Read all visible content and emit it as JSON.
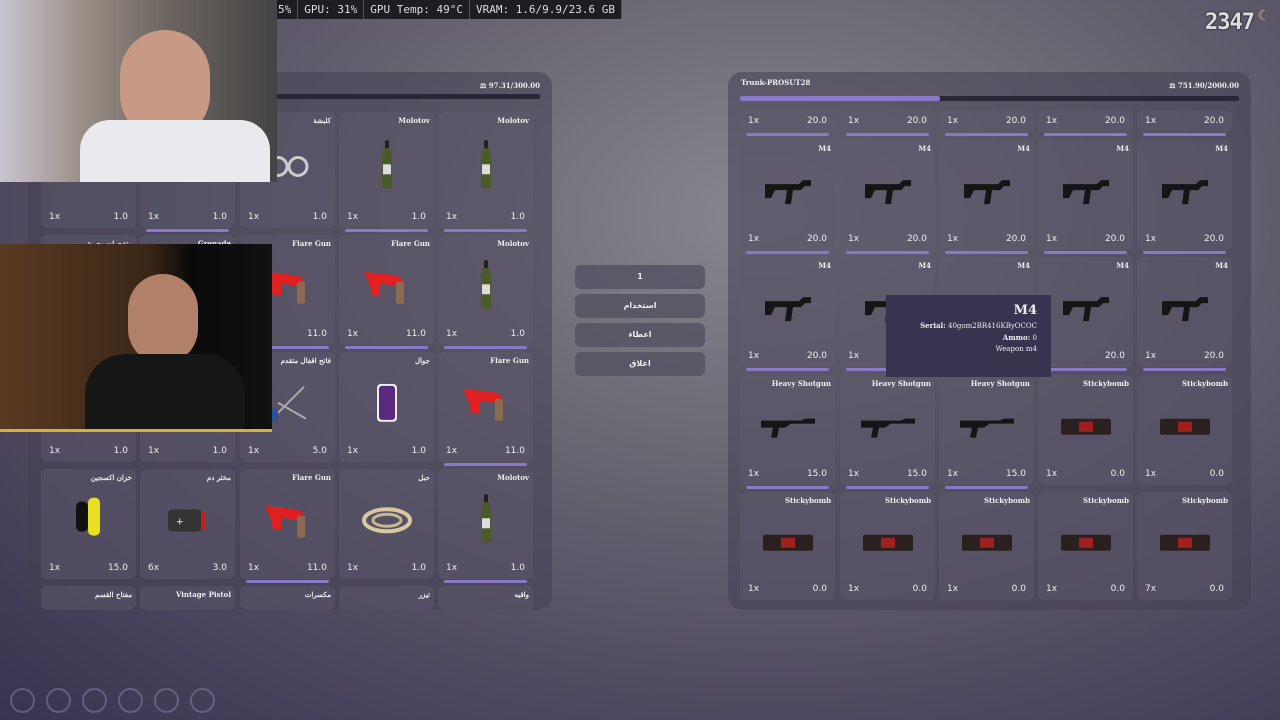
{
  "overlay": {
    "stats": [
      "5%",
      "GPU: 31%",
      "GPU Temp: 49°C",
      "VRAM: 1.6/9.9/23.6 GB"
    ],
    "clock": "2347"
  },
  "player_inventory": {
    "weight": "97.31/300.00",
    "slots": [
      {
        "label": "",
        "qty": "1x",
        "weight": "1.0",
        "icon": "none",
        "durability": 0
      },
      {
        "label": "",
        "qty": "1x",
        "weight": "1.0",
        "icon": "none",
        "durability": 1
      },
      {
        "label": "كلبشة",
        "qty": "1x",
        "weight": "1.0",
        "icon": "handcuffs",
        "durability": 0
      },
      {
        "label": "Molotov",
        "qty": "1x",
        "weight": "1.0",
        "icon": "bottle",
        "durability": 1
      },
      {
        "label": "Molotov",
        "qty": "1x",
        "weight": "1.0",
        "icon": "bottle",
        "durability": 1
      },
      {
        "label": "متفجرات بحرية",
        "qty": "",
        "weight": "",
        "icon": "none",
        "durability": 0
      },
      {
        "label": "Grenade",
        "qty": "",
        "weight": "",
        "icon": "none",
        "durability": 0
      },
      {
        "label": "Flare Gun",
        "qty": "",
        "weight": "11.0",
        "icon": "flaregun",
        "durability": 1
      },
      {
        "label": "Flare Gun",
        "qty": "1x",
        "weight": "11.0",
        "icon": "flaregun",
        "durability": 1
      },
      {
        "label": "Molotov",
        "qty": "1x",
        "weight": "1.0",
        "icon": "bottle",
        "durability": 1
      },
      {
        "label": "",
        "qty": "1x",
        "weight": "1.0",
        "icon": "none",
        "durability": 0
      },
      {
        "label": "",
        "qty": "1x",
        "weight": "1.0",
        "icon": "none",
        "durability": 0
      },
      {
        "label": "فاتح اقفال متقدم",
        "qty": "1x",
        "weight": "5.0",
        "icon": "lockpick",
        "durability": 0
      },
      {
        "label": "جوال",
        "qty": "1x",
        "weight": "1.0",
        "icon": "phone",
        "durability": 0
      },
      {
        "label": "Flare Gun",
        "qty": "1x",
        "weight": "11.0",
        "icon": "flaregun",
        "durability": 1
      },
      {
        "label": "خزان اكسجين",
        "qty": "1x",
        "weight": "15.0",
        "icon": "oxygen",
        "durability": 0
      },
      {
        "label": "مخثر دم",
        "qty": "6x",
        "weight": "3.0",
        "icon": "medkit",
        "durability": 0
      },
      {
        "label": "Flare Gun",
        "qty": "1x",
        "weight": "11.0",
        "icon": "flaregun",
        "durability": 1
      },
      {
        "label": "حبل",
        "qty": "1x",
        "weight": "1.0",
        "icon": "rope",
        "durability": 0
      },
      {
        "label": "Molotov",
        "qty": "1x",
        "weight": "1.0",
        "icon": "bottle",
        "durability": 1
      },
      {
        "label": "مفتاح القسم",
        "qty": "",
        "weight": "",
        "icon": "none",
        "durability": 0
      },
      {
        "label": "Vintage Pistol",
        "qty": "",
        "weight": "",
        "icon": "none",
        "durability": 0
      },
      {
        "label": "مكسرات",
        "qty": "",
        "weight": "",
        "icon": "none",
        "durability": 0
      },
      {
        "label": "تيزر",
        "qty": "",
        "weight": "",
        "icon": "none",
        "durability": 0
      },
      {
        "label": "واقيه",
        "qty": "",
        "weight": "",
        "icon": "none",
        "durability": 0
      }
    ]
  },
  "actions": {
    "amount": "1",
    "use": "استخدام",
    "give": "اعطاء",
    "close": "اغلاق"
  },
  "trunk": {
    "title": "Trunk-PROSUT28",
    "weight": "751.90/2000.00",
    "fill": 0.4,
    "slots": [
      {
        "label": "",
        "qty": "1x",
        "weight": "20.0",
        "icon": "none",
        "durability": 1
      },
      {
        "label": "",
        "qty": "1x",
        "weight": "20.0",
        "icon": "none",
        "durability": 1
      },
      {
        "label": "",
        "qty": "1x",
        "weight": "20.0",
        "icon": "none",
        "durability": 1
      },
      {
        "label": "",
        "qty": "1x",
        "weight": "20.0",
        "icon": "none",
        "durability": 1
      },
      {
        "label": "",
        "qty": "1x",
        "weight": "20.0",
        "icon": "none",
        "durability": 1
      },
      {
        "label": "M4",
        "qty": "1x",
        "weight": "20.0",
        "icon": "rifle",
        "durability": 1
      },
      {
        "label": "M4",
        "qty": "1x",
        "weight": "20.0",
        "icon": "rifle",
        "durability": 1
      },
      {
        "label": "M4",
        "qty": "1x",
        "weight": "20.0",
        "icon": "rifle",
        "durability": 1
      },
      {
        "label": "M4",
        "qty": "1x",
        "weight": "20.0",
        "icon": "rifle",
        "durability": 1
      },
      {
        "label": "M4",
        "qty": "1x",
        "weight": "20.0",
        "icon": "rifle",
        "durability": 1
      },
      {
        "label": "M4",
        "qty": "1x",
        "weight": "20.0",
        "icon": "rifle",
        "durability": 1
      },
      {
        "label": "M4",
        "qty": "1x",
        "weight": "",
        "icon": "rifle",
        "durability": 1
      },
      {
        "label": "M4",
        "qty": "",
        "weight": "",
        "icon": "rifle",
        "durability": 1
      },
      {
        "label": "M4",
        "qty": "",
        "weight": "20.0",
        "icon": "rifle",
        "durability": 1
      },
      {
        "label": "M4",
        "qty": "1x",
        "weight": "20.0",
        "icon": "rifle",
        "durability": 1
      },
      {
        "label": "Heavy Shotgun",
        "qty": "1x",
        "weight": "15.0",
        "icon": "shotgun",
        "durability": 1
      },
      {
        "label": "Heavy Shotgun",
        "qty": "1x",
        "weight": "15.0",
        "icon": "shotgun",
        "durability": 1
      },
      {
        "label": "Heavy Shotgun",
        "qty": "1x",
        "weight": "15.0",
        "icon": "shotgun",
        "durability": 1
      },
      {
        "label": "Stickybomb",
        "qty": "1x",
        "weight": "0.0",
        "icon": "bomb",
        "durability": 0
      },
      {
        "label": "Stickybomb",
        "qty": "1x",
        "weight": "0.0",
        "icon": "bomb",
        "durability": 0
      },
      {
        "label": "Stickybomb",
        "qty": "1x",
        "weight": "0.0",
        "icon": "bomb",
        "durability": 0
      },
      {
        "label": "Stickybomb",
        "qty": "1x",
        "weight": "0.0",
        "icon": "bomb",
        "durability": 0
      },
      {
        "label": "Stickybomb",
        "qty": "1x",
        "weight": "0.0",
        "icon": "bomb",
        "durability": 0
      },
      {
        "label": "Stickybomb",
        "qty": "1x",
        "weight": "0.0",
        "icon": "bomb",
        "durability": 0
      },
      {
        "label": "Stickybomb",
        "qty": "7x",
        "weight": "0.0",
        "icon": "bomb",
        "durability": 0
      }
    ]
  },
  "tooltip": {
    "title": "M4",
    "serial_label": "Serial:",
    "serial": "40gom2BR416KByOCOC",
    "ammo_label": "Ammo:",
    "ammo": "0",
    "weapon": "Weapon m4"
  }
}
